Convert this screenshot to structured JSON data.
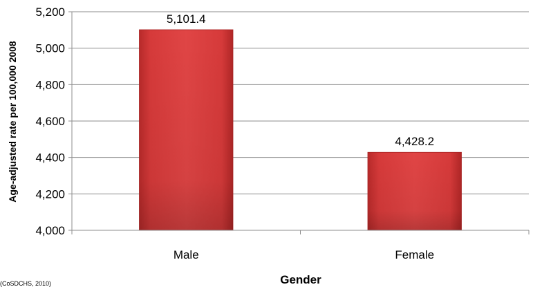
{
  "chart_data": {
    "type": "bar",
    "categories": [
      "Male",
      "Female"
    ],
    "values": [
      5101.4,
      4428.2
    ],
    "data_labels": [
      "5,101.4",
      "4,428.2"
    ],
    "title": "",
    "xlabel": "Gender",
    "ylabel": "Age-adjusted rate per 100,000 2008",
    "ylim": [
      4000,
      5200
    ],
    "yticks": [
      4000,
      4200,
      4400,
      4600,
      4800,
      5000,
      5200
    ],
    "ytick_labels": [
      "4,000",
      "4,200",
      "4,400",
      "4,600",
      "4,800",
      "5,000",
      "5,200"
    ],
    "grid": true,
    "legend": "none",
    "bar_color": "#d63a3a"
  },
  "source_note": "(CoSDCHS, 2010)"
}
